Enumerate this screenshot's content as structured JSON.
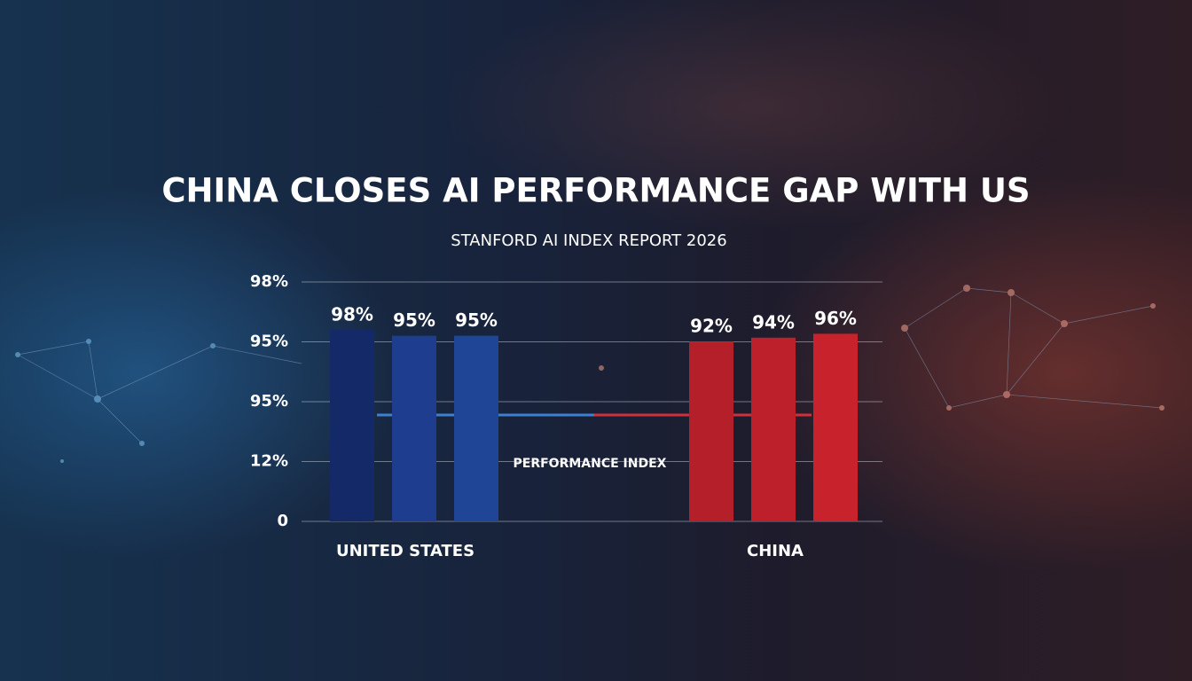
{
  "chart_data": {
    "type": "grouped-bar",
    "title": "CHINA CLOSES AI PERFORMANCE GAP WITH US",
    "subtitle": "STANFORD AI INDEX REPORT 2026",
    "y_axis_labels": [
      "98%",
      "95%",
      "95%",
      "12%",
      "0"
    ],
    "annotation": "PERFORMANCE INDEX",
    "groups": [
      {
        "name": "UNITED STATES",
        "values": [
          98,
          95,
          95
        ],
        "value_labels": [
          "98%",
          "95%",
          "95%"
        ],
        "colors": [
          "#142a68",
          "#1e3d8e",
          "#1f4596"
        ],
        "line_color": "#3d7fd0"
      },
      {
        "name": "CHINA",
        "values": [
          92,
          94,
          96
        ],
        "value_labels": [
          "92%",
          "94%",
          "96%"
        ],
        "colors": [
          "#b51f2a",
          "#be202b",
          "#c8232d"
        ],
        "line_color": "#d0303a"
      }
    ]
  }
}
